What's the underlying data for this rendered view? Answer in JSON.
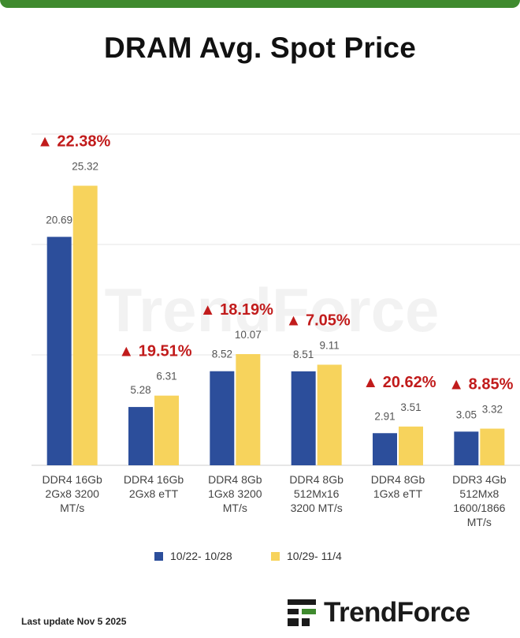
{
  "colors": {
    "accent_bar": "#3f8a2e",
    "series1": "#2c4e9b",
    "series2": "#f7d35c",
    "change": "#c11b1b",
    "grid": "#e4e4e4"
  },
  "title": "DRAM Avg. Spot Price",
  "watermark": "TrendForce",
  "footer": {
    "note": "Last update Nov 5  2025",
    "brand": "TrendForce"
  },
  "chart_data": {
    "type": "bar",
    "title": "DRAM Avg. Spot Price",
    "categories": [
      [
        "DDR4 16Gb",
        "2Gx8 3200",
        "MT/s"
      ],
      [
        "DDR4 16Gb",
        "2Gx8 eTT"
      ],
      [
        "DDR4 8Gb",
        "1Gx8 3200",
        "MT/s"
      ],
      [
        "DDR4 8Gb",
        "512Mx16",
        "3200 MT/s"
      ],
      [
        "DDR4 8Gb",
        "1Gx8 eTT"
      ],
      [
        "DDR3 4Gb",
        "512Mx8",
        "1600/1866",
        "MT/s"
      ]
    ],
    "series": [
      {
        "name": "10/22- 10/28",
        "values": [
          20.69,
          5.28,
          8.52,
          8.51,
          2.91,
          3.05
        ],
        "labels": [
          "20.69",
          "5.28",
          "8.52",
          "8.51",
          "2.91",
          "3.05"
        ]
      },
      {
        "name": "10/29- 11/4",
        "values": [
          25.32,
          6.31,
          10.07,
          9.11,
          3.51,
          3.32
        ],
        "labels": [
          "25.32",
          "6.31",
          "10.07",
          "9.11",
          "3.51",
          "3.32"
        ]
      }
    ],
    "changes": [
      "22.38%",
      "19.51%",
      "18.19%",
      "7.05%",
      "20.62%",
      "8.85%"
    ],
    "change_marker": "▲",
    "ylim": [
      0,
      30
    ],
    "grid": true,
    "legend_position": "bottom"
  }
}
